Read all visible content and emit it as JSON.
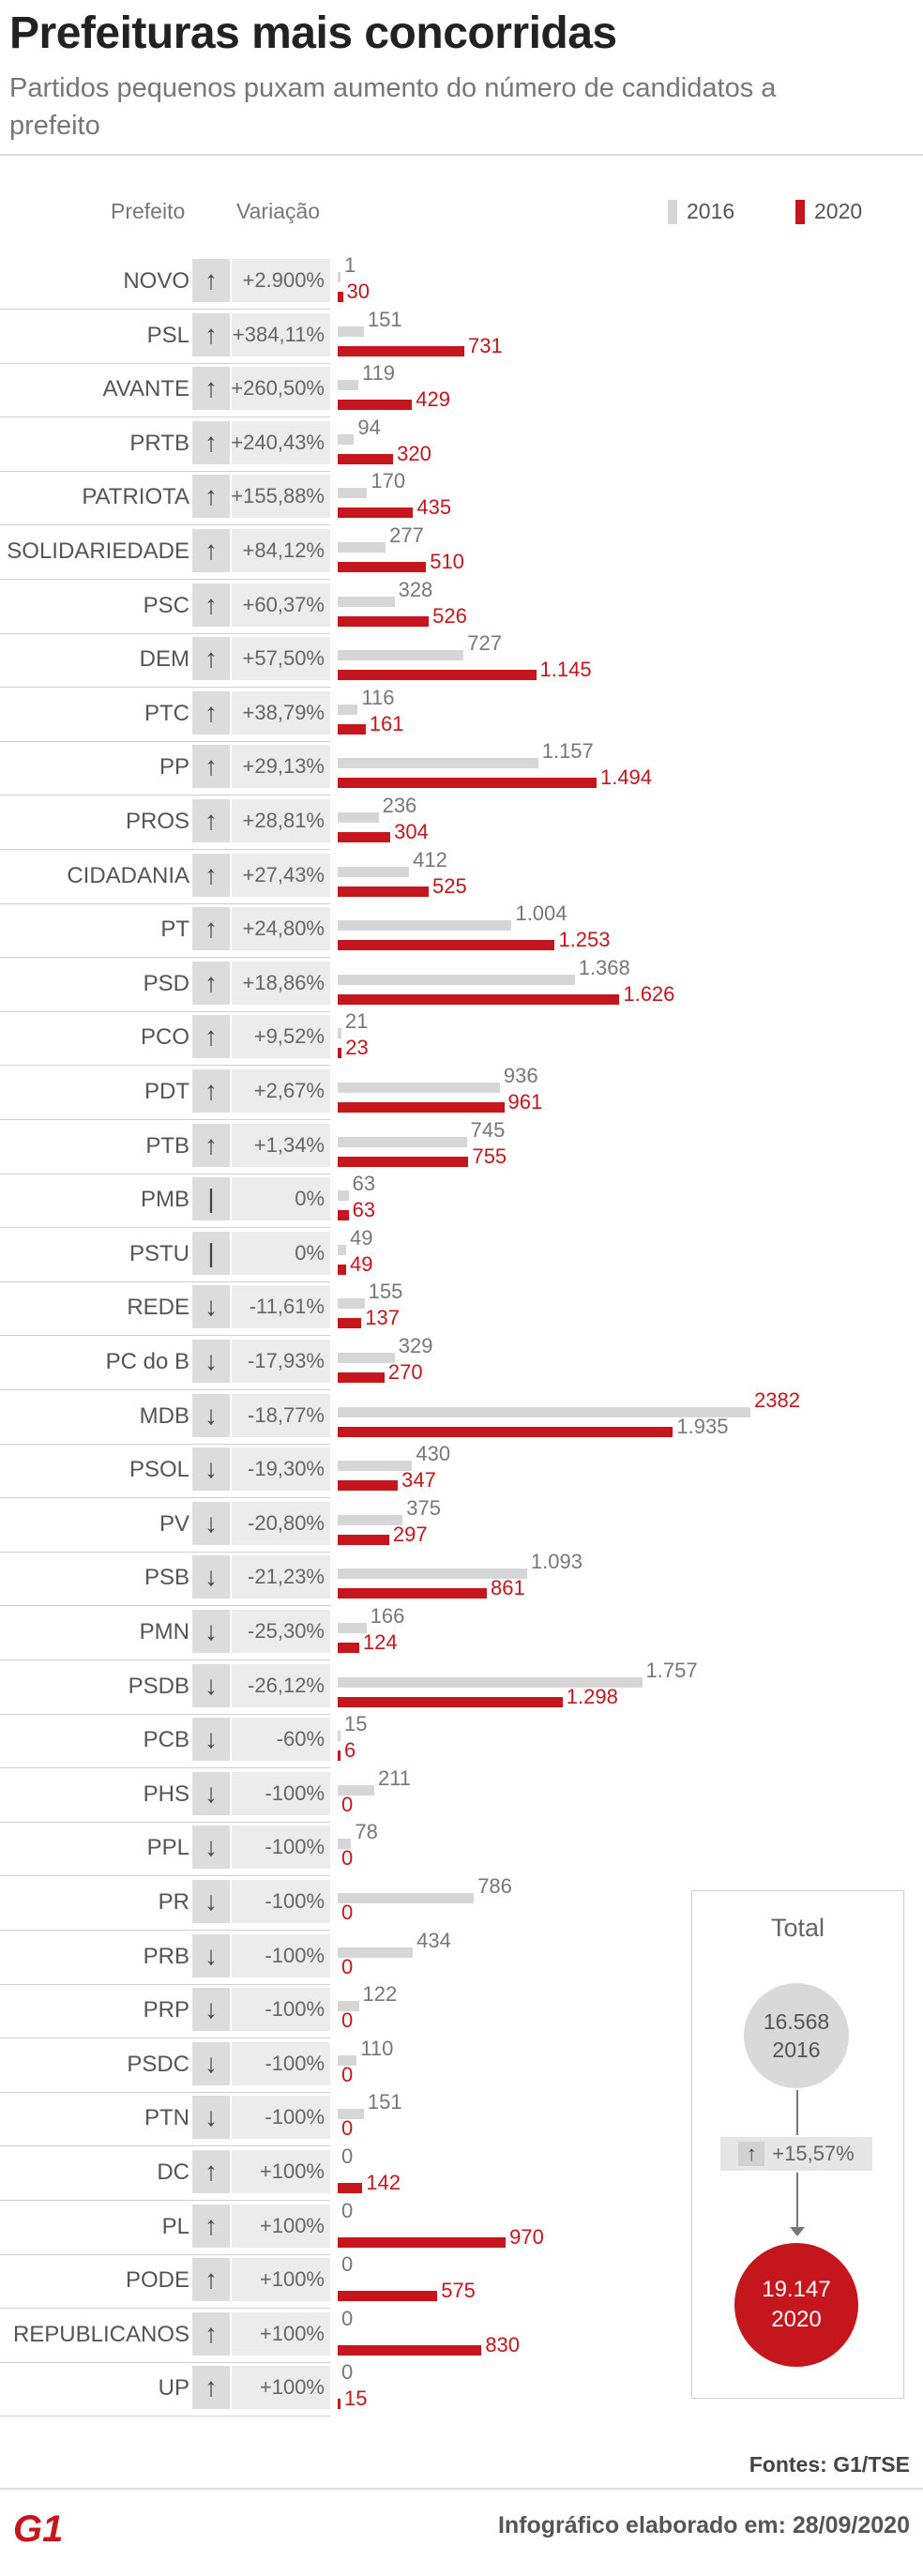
{
  "header": {
    "title": "Prefeituras mais concorridas",
    "subtitle": "Partidos pequenos puxam aumento do número de candidatos a prefeito"
  },
  "columns": {
    "party": "Prefeito",
    "variation": "Variação"
  },
  "legend": {
    "y2016": "2016",
    "y2020": "2020"
  },
  "colors": {
    "y2016": "#d6d6d6",
    "y2020": "#c4161c"
  },
  "icons": {
    "up": "arrow-up-icon",
    "down": "arrow-down-icon",
    "flat": "flat-icon"
  },
  "chart_data": {
    "type": "bar",
    "orientation": "horizontal",
    "categories": [
      "NOVO",
      "PSL",
      "AVANTE",
      "PRTB",
      "PATRIOTA",
      "SOLIDARIEDADE",
      "PSC",
      "DEM",
      "PTC",
      "PP",
      "PROS",
      "CIDADANIA",
      "PT",
      "PSD",
      "PCO",
      "PDT",
      "PTB",
      "PMB",
      "PSTU",
      "REDE",
      "PC do B",
      "MDB",
      "PSOL",
      "PV",
      "PSB",
      "PMN",
      "PSDB",
      "PCB",
      "PHS",
      "PPL",
      "PR",
      "PRB",
      "PRP",
      "PSDC",
      "PTN",
      "DC",
      "PL",
      "PODE",
      "REPUBLICANOS",
      "UP"
    ],
    "series": [
      {
        "name": "2016",
        "values": [
          1,
          151,
          119,
          94,
          170,
          277,
          328,
          727,
          116,
          1157,
          236,
          412,
          1004,
          1368,
          21,
          936,
          745,
          63,
          49,
          155,
          329,
          2382,
          430,
          375,
          1093,
          166,
          1757,
          15,
          211,
          78,
          786,
          434,
          122,
          110,
          151,
          0,
          0,
          0,
          0,
          0
        ]
      },
      {
        "name": "2020",
        "values": [
          30,
          731,
          429,
          320,
          435,
          510,
          526,
          1145,
          161,
          1494,
          304,
          525,
          1253,
          1626,
          23,
          961,
          755,
          63,
          49,
          137,
          270,
          1935,
          347,
          297,
          861,
          124,
          1298,
          6,
          0,
          0,
          0,
          0,
          0,
          0,
          0,
          142,
          970,
          575,
          830,
          15
        ]
      }
    ],
    "labels_2016": [
      "1",
      "151",
      "119",
      "94",
      "170",
      "277",
      "328",
      "727",
      "116",
      "1.157",
      "236",
      "412",
      "1.004",
      "1.368",
      "21",
      "936",
      "745",
      "63",
      "49",
      "155",
      "329",
      "2382",
      "430",
      "375",
      "1.093",
      "166",
      "1.757",
      "15",
      "211",
      "78",
      "786",
      "434",
      "122",
      "110",
      "151",
      "0",
      "0",
      "0",
      "0",
      "0"
    ],
    "labels_2020": [
      "30",
      "731",
      "429",
      "320",
      "435",
      "510",
      "526",
      "1.145",
      "161",
      "1.494",
      "304",
      "525",
      "1.253",
      "1.626",
      "23",
      "961",
      "755",
      "63",
      "49",
      "137",
      "270",
      "1.935",
      "347",
      "297",
      "861",
      "124",
      "1.298",
      "6",
      "0",
      "0",
      "0",
      "0",
      "0",
      "0",
      "0",
      "142",
      "970",
      "575",
      "830",
      "15"
    ],
    "variation": [
      "+2.900%",
      "+384,11%",
      "+260,50%",
      "+240,43%",
      "+155,88%",
      "+84,12%",
      "+60,37%",
      "+57,50%",
      "+38,79%",
      "+29,13%",
      "+28,81%",
      "+27,43%",
      "+24,80%",
      "+18,86%",
      "+9,52%",
      "+2,67%",
      "+1,34%",
      "0%",
      "0%",
      "-11,61%",
      "-17,93%",
      "-18,77%",
      "-19,30%",
      "-20,80%",
      "-21,23%",
      "-25,30%",
      "-26,12%",
      "-60%",
      "-100%",
      "-100%",
      "-100%",
      "-100%",
      "-100%",
      "-100%",
      "-100%",
      "+100%",
      "+100%",
      "+100%",
      "+100%",
      "+100%"
    ],
    "trend": [
      "up",
      "up",
      "up",
      "up",
      "up",
      "up",
      "up",
      "up",
      "up",
      "up",
      "up",
      "up",
      "up",
      "up",
      "up",
      "up",
      "up",
      "flat",
      "flat",
      "down",
      "down",
      "down",
      "down",
      "down",
      "down",
      "down",
      "down",
      "down",
      "down",
      "down",
      "down",
      "down",
      "down",
      "down",
      "down",
      "up",
      "up",
      "up",
      "up",
      "up"
    ],
    "xlim": [
      0,
      2382
    ],
    "grid": false,
    "legend_position": "top-right"
  },
  "total": {
    "title": "Total",
    "value_2016": "16.568",
    "year_2016": "2016",
    "change": "+15,57%",
    "value_2020": "19.147",
    "year_2020": "2020"
  },
  "footer": {
    "sources": "Fontes: G1/TSE",
    "logo": "G1",
    "credit": "Infográfico elaborado em: 28/09/2020"
  }
}
